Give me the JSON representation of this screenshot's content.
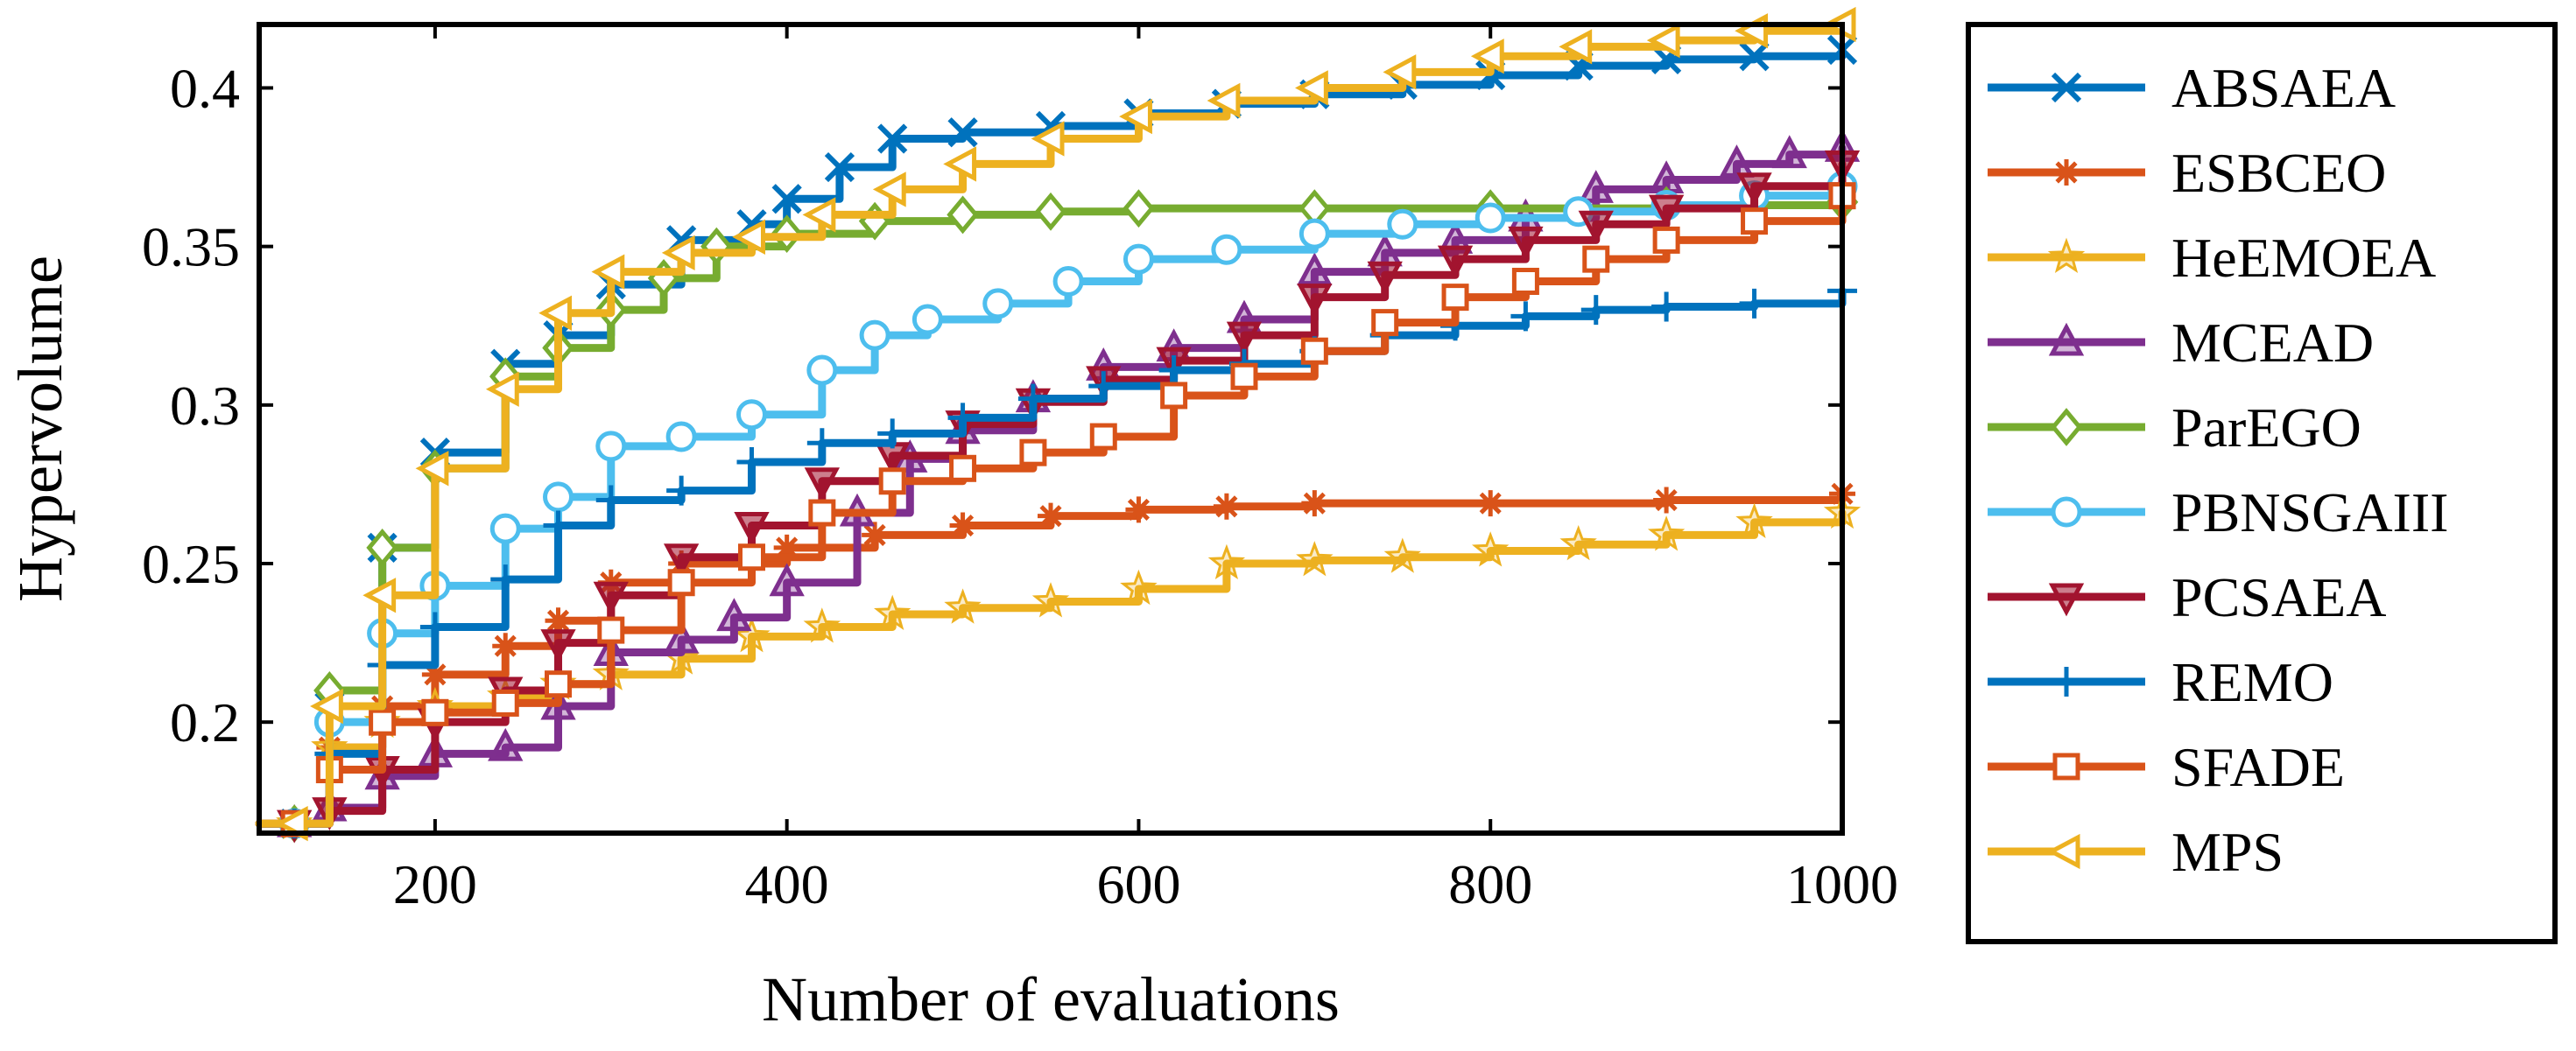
{
  "chart_data": {
    "type": "line",
    "title": "",
    "xlabel": "Number of evaluations",
    "ylabel": "Hypervolume",
    "xlim": [
      100,
      1000
    ],
    "ylim": [
      0.165,
      0.42
    ],
    "xticks": [
      200,
      400,
      600,
      800,
      1000
    ],
    "xtick_labels": [
      "200",
      "400",
      "600",
      "800",
      "1000"
    ],
    "yticks": [
      0.2,
      0.25,
      0.3,
      0.35,
      0.4
    ],
    "ytick_labels": [
      "0.2",
      "0.25",
      "0.3",
      "0.35",
      "0.4"
    ],
    "grid": false,
    "legend_position": "outside-right",
    "series": [
      {
        "name": "ABSAEA",
        "color": "#0072BD",
        "marker": "x",
        "points": [
          [
            100,
            0.168
          ],
          [
            120,
            0.168
          ],
          [
            140,
            0.205
          ],
          [
            170,
            0.255
          ],
          [
            200,
            0.285
          ],
          [
            240,
            0.313
          ],
          [
            270,
            0.322
          ],
          [
            300,
            0.338
          ],
          [
            340,
            0.352
          ],
          [
            380,
            0.357
          ],
          [
            400,
            0.365
          ],
          [
            430,
            0.375
          ],
          [
            460,
            0.384
          ],
          [
            500,
            0.386
          ],
          [
            550,
            0.388
          ],
          [
            600,
            0.392
          ],
          [
            650,
            0.395
          ],
          [
            700,
            0.398
          ],
          [
            750,
            0.401
          ],
          [
            800,
            0.404
          ],
          [
            850,
            0.407
          ],
          [
            900,
            0.409
          ],
          [
            950,
            0.41
          ],
          [
            1000,
            0.412
          ]
        ]
      },
      {
        "name": "ESBCEO",
        "color": "#D95319",
        "marker": "asterisk",
        "points": [
          [
            100,
            0.168
          ],
          [
            120,
            0.168
          ],
          [
            140,
            0.192
          ],
          [
            170,
            0.205
          ],
          [
            200,
            0.215
          ],
          [
            240,
            0.224
          ],
          [
            270,
            0.232
          ],
          [
            300,
            0.244
          ],
          [
            340,
            0.25
          ],
          [
            400,
            0.255
          ],
          [
            450,
            0.259
          ],
          [
            500,
            0.262
          ],
          [
            550,
            0.265
          ],
          [
            600,
            0.267
          ],
          [
            650,
            0.268
          ],
          [
            700,
            0.269
          ],
          [
            800,
            0.269
          ],
          [
            900,
            0.27
          ],
          [
            1000,
            0.272
          ]
        ]
      },
      {
        "name": "HeEMOEA",
        "color": "#EDB120",
        "marker": "star",
        "points": [
          [
            100,
            0.168
          ],
          [
            120,
            0.168
          ],
          [
            140,
            0.192
          ],
          [
            170,
            0.2
          ],
          [
            200,
            0.205
          ],
          [
            240,
            0.208
          ],
          [
            270,
            0.212
          ],
          [
            300,
            0.215
          ],
          [
            340,
            0.22
          ],
          [
            380,
            0.227
          ],
          [
            420,
            0.23
          ],
          [
            460,
            0.234
          ],
          [
            500,
            0.236
          ],
          [
            550,
            0.238
          ],
          [
            600,
            0.242
          ],
          [
            650,
            0.25
          ],
          [
            700,
            0.251
          ],
          [
            750,
            0.252
          ],
          [
            800,
            0.254
          ],
          [
            850,
            0.256
          ],
          [
            900,
            0.259
          ],
          [
            950,
            0.263
          ],
          [
            1000,
            0.266
          ]
        ]
      },
      {
        "name": "MCEAD",
        "color": "#7E2F8E",
        "marker": "triangle-up",
        "points": [
          [
            100,
            0.168
          ],
          [
            120,
            0.168
          ],
          [
            140,
            0.173
          ],
          [
            170,
            0.183
          ],
          [
            200,
            0.19
          ],
          [
            240,
            0.192
          ],
          [
            270,
            0.205
          ],
          [
            300,
            0.222
          ],
          [
            340,
            0.226
          ],
          [
            370,
            0.233
          ],
          [
            400,
            0.244
          ],
          [
            440,
            0.266
          ],
          [
            470,
            0.283
          ],
          [
            500,
            0.292
          ],
          [
            540,
            0.302
          ],
          [
            580,
            0.312
          ],
          [
            620,
            0.318
          ],
          [
            660,
            0.327
          ],
          [
            700,
            0.342
          ],
          [
            740,
            0.348
          ],
          [
            780,
            0.352
          ],
          [
            820,
            0.359
          ],
          [
            860,
            0.368
          ],
          [
            900,
            0.371
          ],
          [
            940,
            0.376
          ],
          [
            970,
            0.379
          ],
          [
            1000,
            0.381
          ]
        ]
      },
      {
        "name": "ParEGO",
        "color": "#77AC30",
        "marker": "diamond",
        "points": [
          [
            100,
            0.168
          ],
          [
            120,
            0.168
          ],
          [
            140,
            0.21
          ],
          [
            170,
            0.255
          ],
          [
            200,
            0.28
          ],
          [
            240,
            0.309
          ],
          [
            270,
            0.318
          ],
          [
            300,
            0.33
          ],
          [
            330,
            0.34
          ],
          [
            360,
            0.35
          ],
          [
            400,
            0.354
          ],
          [
            450,
            0.358
          ],
          [
            500,
            0.36
          ],
          [
            550,
            0.361
          ],
          [
            600,
            0.362
          ],
          [
            700,
            0.362
          ],
          [
            800,
            0.362
          ],
          [
            900,
            0.363
          ],
          [
            1000,
            0.364
          ]
        ]
      },
      {
        "name": "PBNSGAIII",
        "color": "#4DBEEE",
        "marker": "circle",
        "points": [
          [
            100,
            0.168
          ],
          [
            120,
            0.168
          ],
          [
            140,
            0.2
          ],
          [
            170,
            0.228
          ],
          [
            200,
            0.243
          ],
          [
            240,
            0.261
          ],
          [
            270,
            0.271
          ],
          [
            300,
            0.287
          ],
          [
            340,
            0.29
          ],
          [
            380,
            0.297
          ],
          [
            420,
            0.311
          ],
          [
            450,
            0.322
          ],
          [
            480,
            0.327
          ],
          [
            520,
            0.332
          ],
          [
            560,
            0.339
          ],
          [
            600,
            0.346
          ],
          [
            650,
            0.349
          ],
          [
            700,
            0.354
          ],
          [
            750,
            0.357
          ],
          [
            800,
            0.359
          ],
          [
            850,
            0.361
          ],
          [
            900,
            0.363
          ],
          [
            950,
            0.366
          ],
          [
            1000,
            0.369
          ]
        ]
      },
      {
        "name": "PCSAEA",
        "color": "#A2142F",
        "marker": "triangle-down",
        "points": [
          [
            100,
            0.168
          ],
          [
            120,
            0.168
          ],
          [
            140,
            0.172
          ],
          [
            170,
            0.185
          ],
          [
            200,
            0.2
          ],
          [
            240,
            0.21
          ],
          [
            270,
            0.225
          ],
          [
            300,
            0.24
          ],
          [
            340,
            0.252
          ],
          [
            380,
            0.262
          ],
          [
            420,
            0.276
          ],
          [
            460,
            0.284
          ],
          [
            500,
            0.294
          ],
          [
            540,
            0.301
          ],
          [
            580,
            0.308
          ],
          [
            620,
            0.314
          ],
          [
            660,
            0.322
          ],
          [
            700,
            0.334
          ],
          [
            740,
            0.341
          ],
          [
            780,
            0.346
          ],
          [
            820,
            0.352
          ],
          [
            860,
            0.357
          ],
          [
            900,
            0.362
          ],
          [
            950,
            0.369
          ],
          [
            1000,
            0.376
          ]
        ]
      },
      {
        "name": "REMO",
        "color": "#0072BD",
        "marker": "plus",
        "points": [
          [
            100,
            0.168
          ],
          [
            120,
            0.168
          ],
          [
            140,
            0.19
          ],
          [
            170,
            0.218
          ],
          [
            200,
            0.23
          ],
          [
            240,
            0.245
          ],
          [
            270,
            0.262
          ],
          [
            300,
            0.27
          ],
          [
            340,
            0.273
          ],
          [
            380,
            0.282
          ],
          [
            420,
            0.288
          ],
          [
            460,
            0.291
          ],
          [
            500,
            0.296
          ],
          [
            540,
            0.302
          ],
          [
            580,
            0.306
          ],
          [
            620,
            0.311
          ],
          [
            660,
            0.313
          ],
          [
            700,
            0.317
          ],
          [
            740,
            0.322
          ],
          [
            780,
            0.325
          ],
          [
            820,
            0.328
          ],
          [
            860,
            0.33
          ],
          [
            900,
            0.331
          ],
          [
            950,
            0.332
          ],
          [
            1000,
            0.336
          ]
        ]
      },
      {
        "name": "SFADE",
        "color": "#D95319",
        "marker": "square",
        "points": [
          [
            100,
            0.168
          ],
          [
            120,
            0.168
          ],
          [
            140,
            0.185
          ],
          [
            170,
            0.2
          ],
          [
            200,
            0.203
          ],
          [
            240,
            0.206
          ],
          [
            270,
            0.212
          ],
          [
            300,
            0.229
          ],
          [
            340,
            0.244
          ],
          [
            380,
            0.252
          ],
          [
            420,
            0.266
          ],
          [
            460,
            0.276
          ],
          [
            500,
            0.28
          ],
          [
            540,
            0.285
          ],
          [
            580,
            0.29
          ],
          [
            620,
            0.303
          ],
          [
            660,
            0.309
          ],
          [
            700,
            0.317
          ],
          [
            740,
            0.326
          ],
          [
            780,
            0.334
          ],
          [
            820,
            0.339
          ],
          [
            860,
            0.346
          ],
          [
            900,
            0.352
          ],
          [
            950,
            0.358
          ],
          [
            1000,
            0.366
          ]
        ]
      },
      {
        "name": "MPS",
        "color": "#EDB120",
        "marker": "triangle-left",
        "points": [
          [
            100,
            0.168
          ],
          [
            120,
            0.168
          ],
          [
            140,
            0.205
          ],
          [
            170,
            0.24
          ],
          [
            200,
            0.28
          ],
          [
            240,
            0.305
          ],
          [
            270,
            0.329
          ],
          [
            300,
            0.342
          ],
          [
            340,
            0.348
          ],
          [
            380,
            0.353
          ],
          [
            420,
            0.36
          ],
          [
            460,
            0.368
          ],
          [
            500,
            0.376
          ],
          [
            550,
            0.384
          ],
          [
            600,
            0.391
          ],
          [
            650,
            0.396
          ],
          [
            700,
            0.4
          ],
          [
            750,
            0.405
          ],
          [
            800,
            0.41
          ],
          [
            850,
            0.413
          ],
          [
            900,
            0.415
          ],
          [
            950,
            0.418
          ],
          [
            1000,
            0.42
          ]
        ]
      }
    ]
  }
}
